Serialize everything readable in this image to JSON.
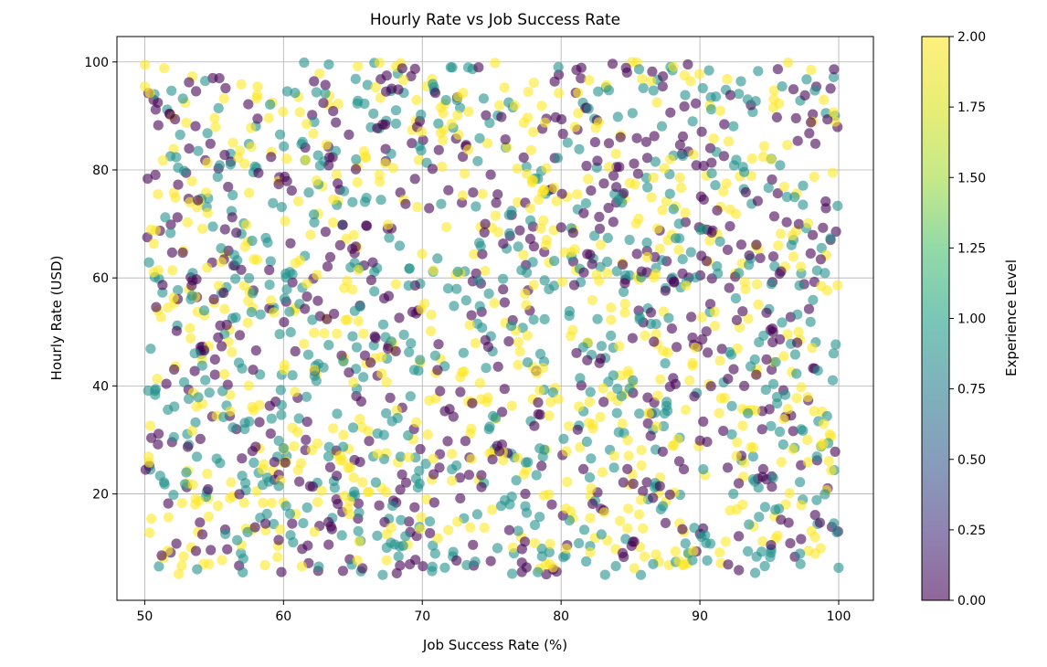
{
  "chart_data": {
    "type": "scatter",
    "title": "Hourly Rate vs Job Success Rate",
    "xlabel": "Job Success Rate (%)",
    "ylabel": "Hourly Rate (USD)",
    "xlim": [
      48,
      102.5
    ],
    "ylim": [
      0.3,
      104.7
    ],
    "xticks": [
      50,
      60,
      70,
      80,
      90,
      100
    ],
    "yticks": [
      20,
      40,
      60,
      80,
      100
    ],
    "grid": true,
    "marker_alpha": 0.6,
    "colormap": "viridis",
    "colorbar": {
      "label": "Experience Level",
      "range": [
        0,
        2
      ],
      "ticks": [
        "0.00",
        "0.25",
        "0.50",
        "0.75",
        "1.00",
        "1.25",
        "1.50",
        "1.75",
        "2.00"
      ]
    },
    "level_colors": {
      "0": "#440154",
      "1": "#21918c",
      "2": "#fde725"
    },
    "approx_point_count": 2000,
    "x_range": [
      50,
      100
    ],
    "y_range": [
      5,
      100
    ],
    "experience_levels": [
      0,
      1,
      2
    ]
  }
}
